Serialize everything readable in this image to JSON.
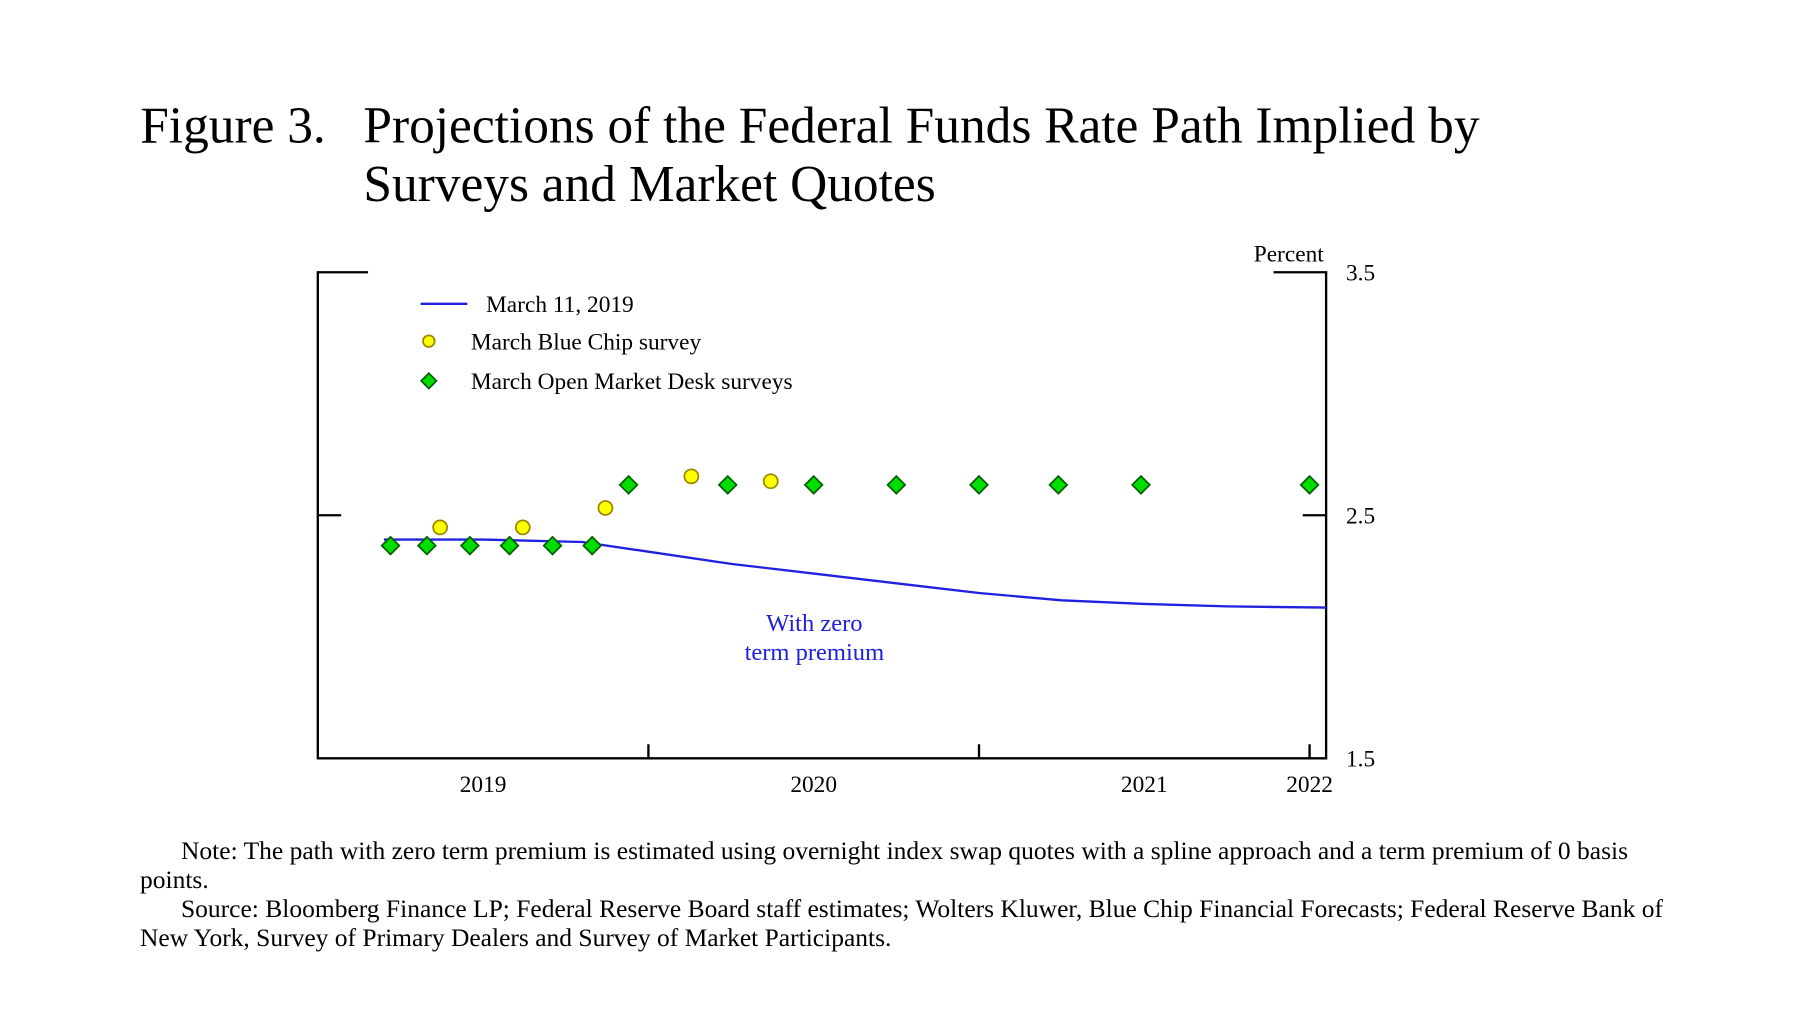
{
  "figure_label": "Figure 3.",
  "title_lines": [
    "Projections of the Federal Funds Rate Path Implied by",
    "Surveys and Market Quotes"
  ],
  "chart_data": {
    "type": "line",
    "y_label": "Percent",
    "annotation": [
      "With zero",
      "term premium"
    ],
    "xlim": [
      2019,
      2022.05
    ],
    "xticks": [
      {
        "value": 2019.5,
        "label": "2019"
      },
      {
        "value": 2020.5,
        "label": "2020"
      },
      {
        "value": 2021.5,
        "label": "2021"
      },
      2022
    ],
    "xtick_marks": [
      2020,
      2021,
      2022
    ],
    "ylim": [
      1.5,
      3.5
    ],
    "yticks": [
      1.5,
      2.5,
      3.5
    ],
    "series": [
      {
        "name": "March 11, 2019",
        "kind": "line",
        "color": "#2020e0",
        "x": [
          2019.2,
          2019.5,
          2019.8,
          2020.0,
          2020.25,
          2020.5,
          2020.75,
          2021.0,
          2021.25,
          2021.5,
          2021.75,
          2022.05
        ],
        "values": [
          2.4,
          2.4,
          2.39,
          2.35,
          2.3,
          2.26,
          2.22,
          2.18,
          2.15,
          2.135,
          2.125,
          2.12
        ]
      },
      {
        "name": "March Blue Chip survey",
        "kind": "circle",
        "color": "#ffff00",
        "x": [
          2019.37,
          2019.62,
          2019.87,
          2020.13,
          2020.37
        ],
        "values": [
          2.45,
          2.45,
          2.53,
          2.66,
          2.64
        ]
      },
      {
        "name": "March Open Market Desk surveys",
        "kind": "diamond",
        "color": "#00dd00",
        "x": [
          2019.22,
          2019.33,
          2019.46,
          2019.58,
          2019.71,
          2019.83,
          2019.94,
          2020.24,
          2020.5,
          2020.75,
          2021.0,
          2021.24,
          2021.49,
          2022.0
        ],
        "values": [
          2.375,
          2.375,
          2.375,
          2.375,
          2.375,
          2.375,
          2.625,
          2.625,
          2.625,
          2.625,
          2.625,
          2.625,
          2.625,
          2.625
        ]
      }
    ]
  },
  "note": "Note: The path with zero term premium is estimated using overnight index swap quotes with a spline approach and a term premium of 0 basis points.",
  "source": "Source: Bloomberg Finance LP; Federal Reserve Board staff estimates; Wolters Kluwer, Blue Chip Financial Forecasts; Federal Reserve Bank of New York, Survey of Primary Dealers and Survey of Market Participants."
}
